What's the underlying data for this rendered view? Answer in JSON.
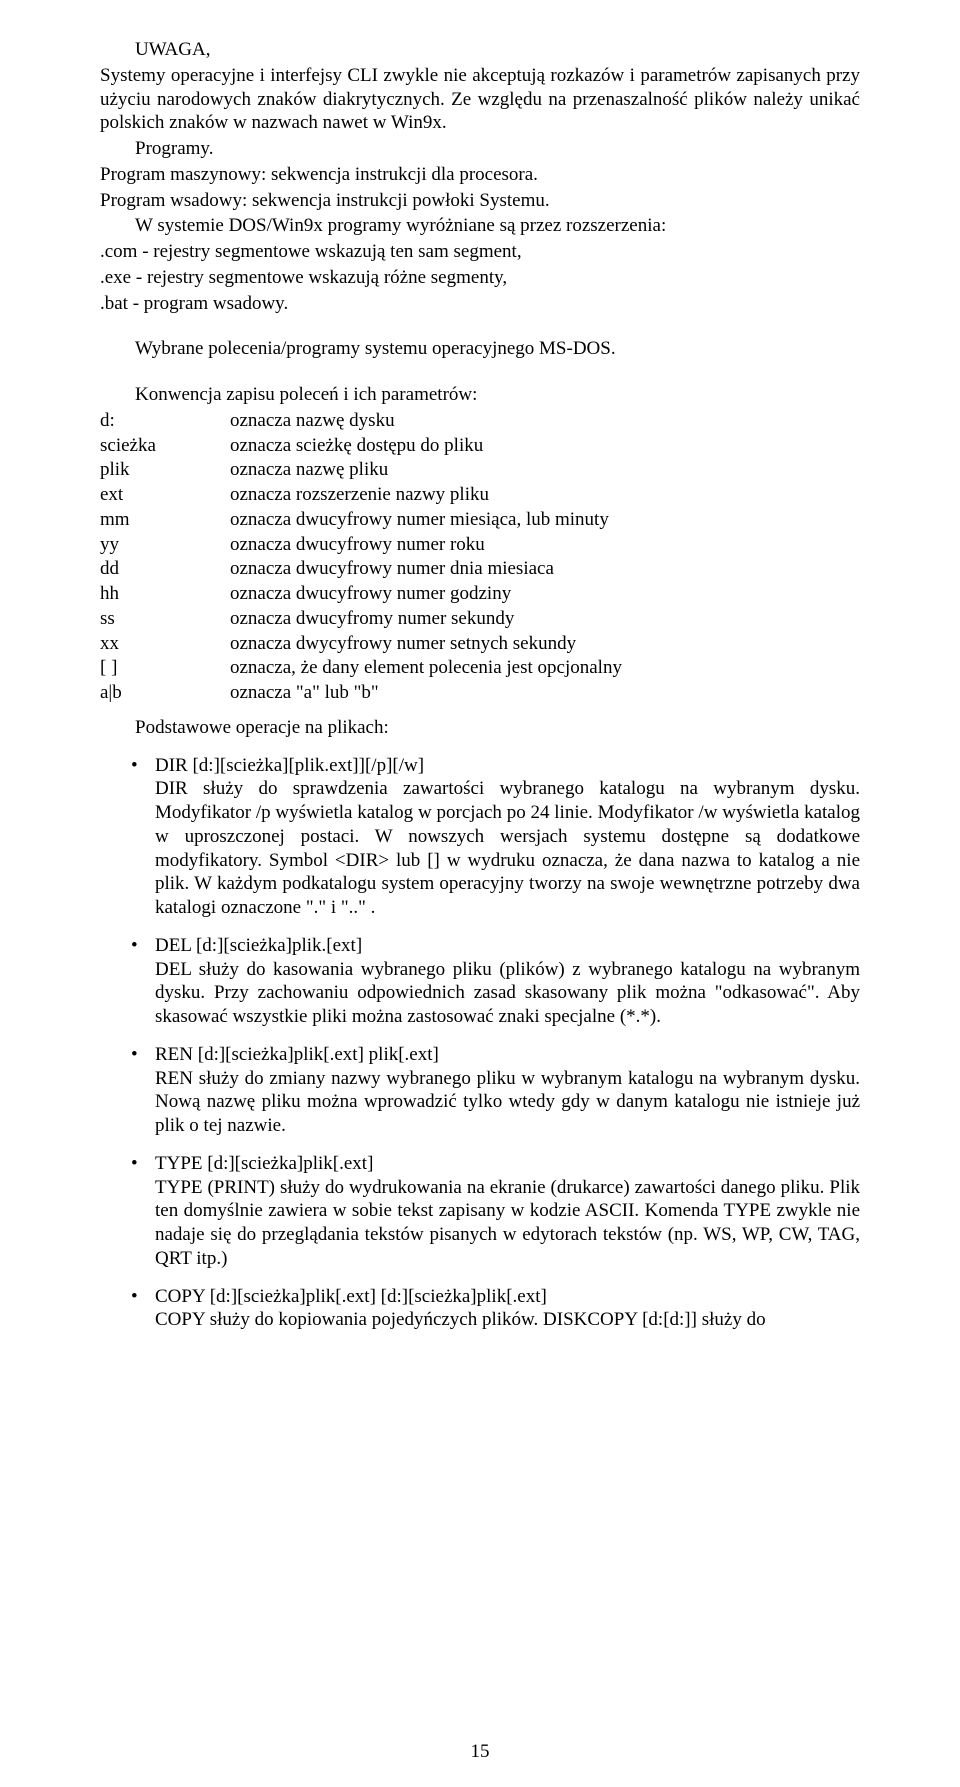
{
  "intro": {
    "line1": "UWAGA,",
    "line2": "Systemy operacyjne i interfejsy CLI zwykle nie akceptują rozkazów i parametrów zapisanych przy użyciu narodowych znaków diakrytycznych. Ze względu na przenaszalność plików należy unikać polskich znaków w nazwach nawet w Win9x.",
    "line3": "Programy.",
    "line4": "Program maszynowy: sekwencja instrukcji dla procesora.",
    "line5": "Program wsadowy: sekwencja instrukcji powłoki Systemu.",
    "line6": "W systemie DOS/Win9x programy wyróżniane są przez rozszerzenia:",
    "line7": ".com - rejestry segmentowe wskazują ten sam segment,",
    "line8": ".exe - rejestry segmentowe wskazują różne segmenty,",
    "line9": ".bat - program wsadowy."
  },
  "section_title": "Wybrane polecenia/programy systemu operacyjnego MS-DOS.",
  "conv_heading": "Konwencja zapisu poleceń i ich parametrów:",
  "conv": [
    {
      "k": "d:",
      "v": "oznacza nazwę dysku"
    },
    {
      "k": "scieżka",
      "v": "oznacza scieżkę dostępu do pliku"
    },
    {
      "k": "plik",
      "v": "oznacza nazwę pliku"
    },
    {
      "k": "ext",
      "v": "oznacza rozszerzenie nazwy pliku"
    },
    {
      "k": "mm",
      "v": "oznacza dwucyfrowy numer miesiąca, lub minuty"
    },
    {
      "k": "yy",
      "v": "oznacza dwucyfrowy numer roku"
    },
    {
      "k": "dd",
      "v": "oznacza dwucyfrowy numer dnia miesiaca"
    },
    {
      "k": "hh",
      "v": "oznacza dwucyfrowy numer godziny"
    },
    {
      "k": "ss",
      "v": "oznacza dwucyfromy numer sekundy"
    },
    {
      "k": "xx",
      "v": "oznacza dwycyfrowy numer setnych sekundy"
    },
    {
      "k": "[ ]",
      "v": "oznacza, że dany element polecenia jest opcjonalny"
    },
    {
      "k": "a|b",
      "v": "oznacza \"a\" lub \"b\""
    }
  ],
  "ops_heading": "Podstawowe operacje na plikach:",
  "cmds": [
    {
      "syntax": "DIR [d:][scieżka][plik.ext]][/p][/w]",
      "desc": "DIR służy do sprawdzenia zawartości wybranego katalogu na wybranym dysku. Modyfikator /p wyświetla katalog w porcjach po 24 linie. Modyfikator /w wyświetla katalog w uproszczonej postaci. W nowszych wersjach systemu dostępne są dodatkowe modyfikatory. Symbol <DIR> lub [] w wydruku oznacza, że dana nazwa to katalog a nie plik. W każdym podkatalogu system operacyjny tworzy na swoje wewnętrzne potrzeby dwa katalogi oznaczone \".\" i \"..\" ."
    },
    {
      "syntax": "DEL [d:][scieżka]plik.[ext]",
      "desc": "DEL służy do kasowania wybranego pliku (plików) z wybranego katalogu na wybranym dysku. Przy zachowaniu odpowiednich zasad skasowany plik można \"odkasować\". Aby skasować wszystkie pliki można zastosować znaki specjalne (*.*)."
    },
    {
      "syntax": "REN [d:][scieżka]plik[.ext] plik[.ext]",
      "desc": "REN służy do zmiany nazwy wybranego pliku w wybranym katalogu na wybranym dysku. Nową nazwę pliku można wprowadzić tylko wtedy gdy w danym katalogu nie istnieje już plik o tej nazwie."
    },
    {
      "syntax": "TYPE [d:][scieżka]plik[.ext]",
      "desc": "TYPE (PRINT) służy do wydrukowania na ekranie (drukarce) zawartości danego pliku. Plik ten domyślnie zawiera w sobie tekst zapisany w kodzie ASCII. Komenda TYPE zwykle nie nadaje się do przeglądania tekstów pisanych w edytorach tekstów (np. WS, WP, CW, TAG, QRT itp.)"
    },
    {
      "syntax": "COPY [d:][scieżka]plik[.ext] [d:][scieżka]plik[.ext]",
      "desc": "COPY służy do kopiowania pojedyńczych plików. DISKCOPY [d:[d:]] służy do"
    }
  ],
  "pagenum": "15"
}
